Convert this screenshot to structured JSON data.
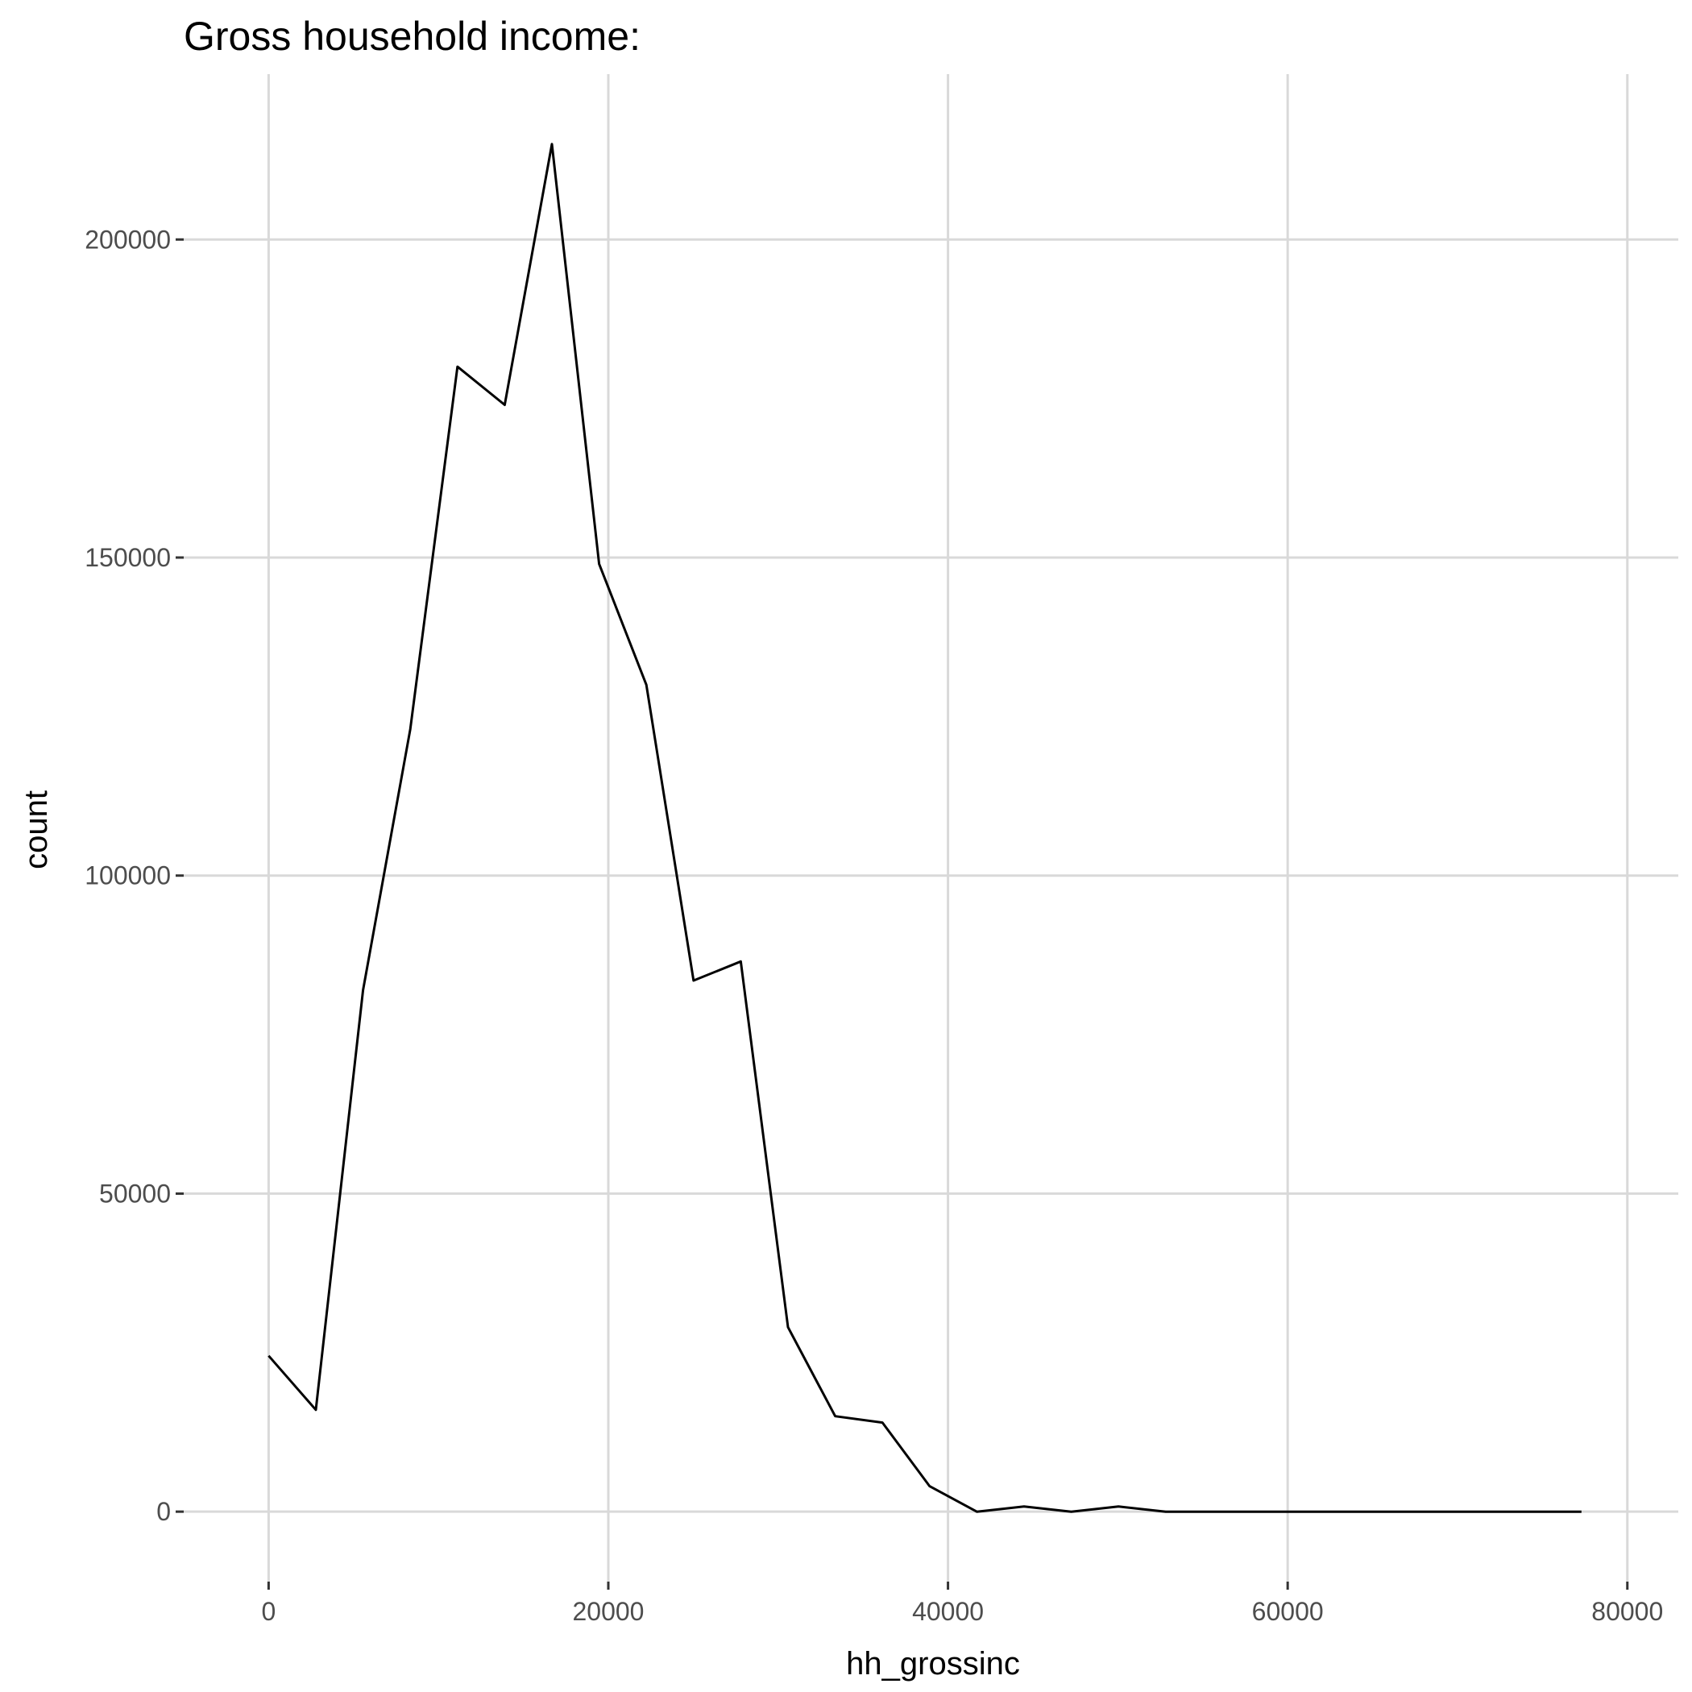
{
  "chart_data": {
    "type": "line",
    "title": "Gross household income:",
    "xlabel": "hh_grossinc",
    "ylabel": "count",
    "xlim": [
      -5000,
      83000
    ],
    "ylim": [
      -11000,
      226000
    ],
    "xticks": [
      0,
      20000,
      40000,
      60000,
      80000
    ],
    "xtick_labels": [
      "0",
      "20000",
      "40000",
      "60000",
      "80000"
    ],
    "yticks": [
      0,
      50000,
      100000,
      150000,
      200000
    ],
    "ytick_labels": [
      "0",
      "50000",
      "100000",
      "150000",
      "200000"
    ],
    "grid": true,
    "legend": "none",
    "colors": {
      "line": "#000000",
      "grid": "#d9d9d9",
      "tick_label": "#4d4d4d",
      "background": "#ffffff"
    },
    "series": [
      {
        "x": [
          0,
          2780,
          5560,
          8340,
          11120,
          13900,
          16680,
          19460,
          22240,
          25020,
          27800,
          30580,
          33360,
          36140,
          38920,
          41700,
          44480,
          47260,
          50040,
          52820,
          55600,
          58380,
          61160,
          63940,
          66720,
          69500,
          72280,
          75060,
          77300
        ],
        "y": [
          24500,
          16000,
          82000,
          123000,
          180000,
          174000,
          215000,
          149000,
          130000,
          83500,
          86500,
          29000,
          15000,
          14000,
          4000,
          0,
          800,
          0,
          800,
          0,
          0,
          0,
          0,
          0,
          0,
          0,
          0,
          0,
          0
        ]
      }
    ]
  }
}
